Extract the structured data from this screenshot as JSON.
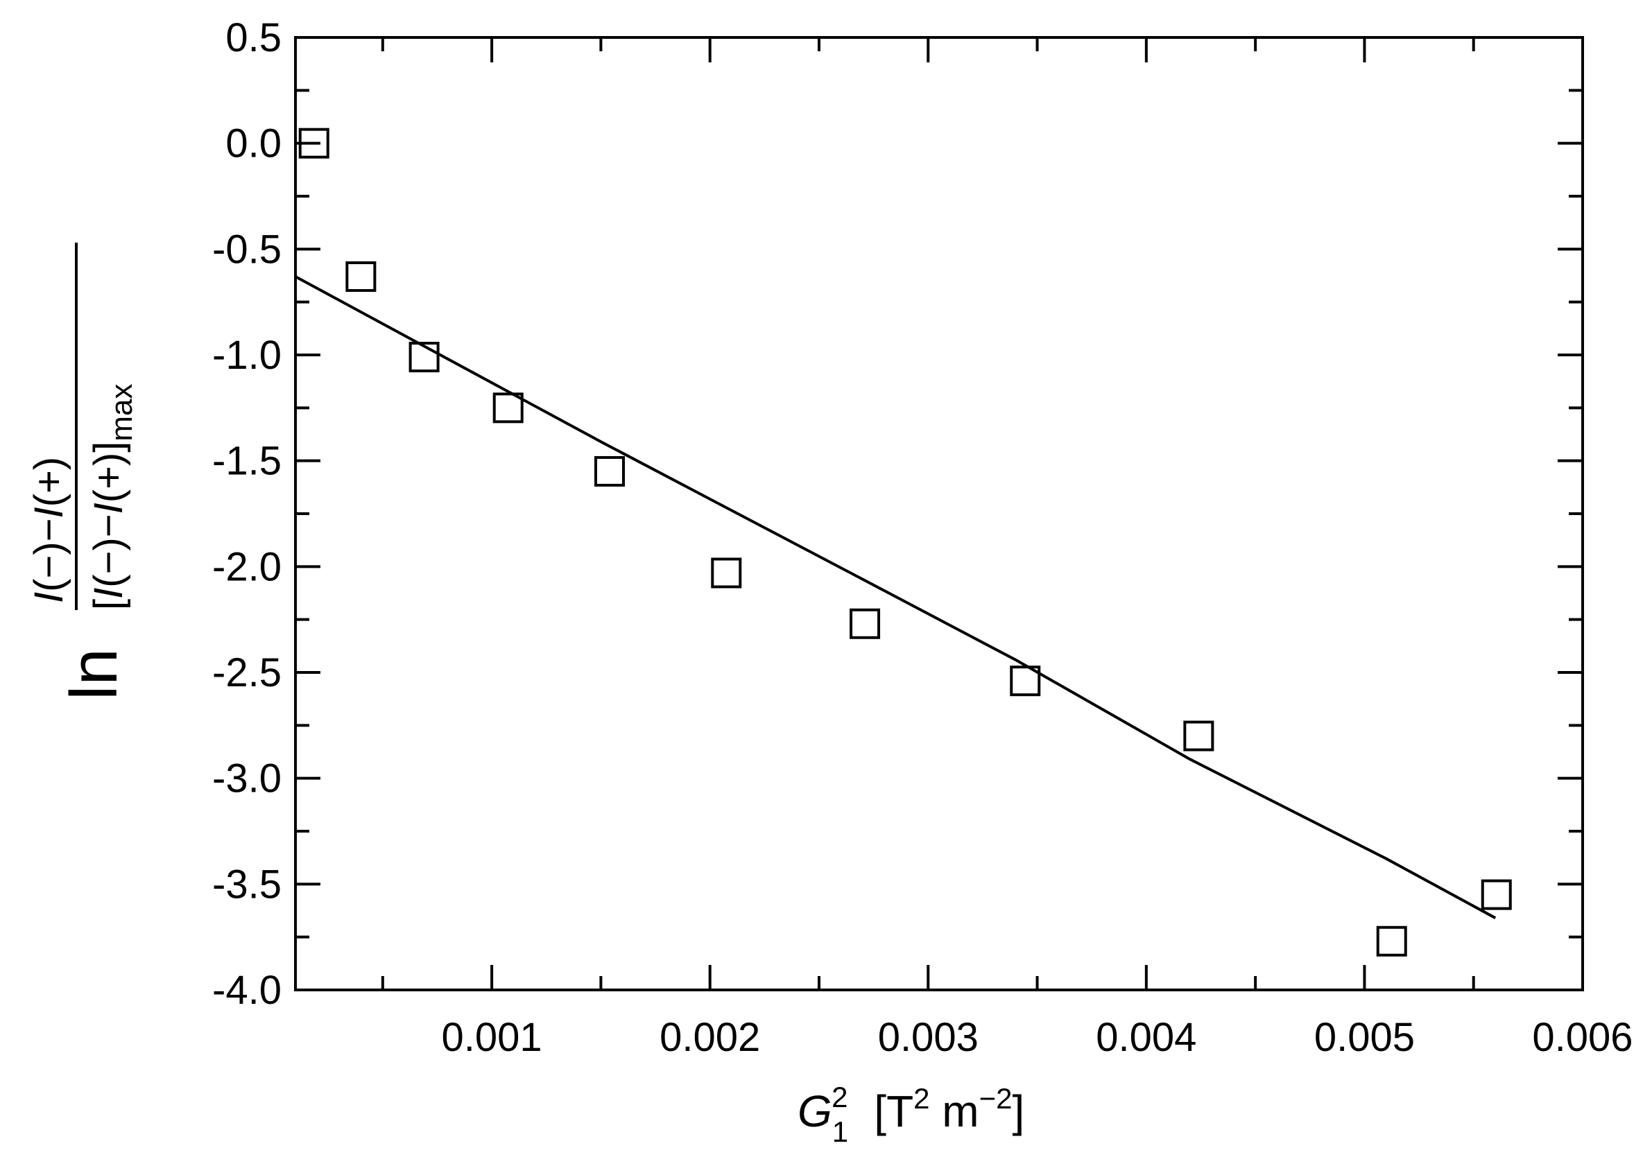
{
  "chart_data": {
    "type": "scatter",
    "xlabel": "G₁² [T² m⁻²]",
    "ylabel": "ln (I(−)−I(+)) / [I(−)−I(+)]max",
    "xlim": [
      0.0001,
      0.006
    ],
    "ylim": [
      -4.0,
      0.5
    ],
    "xticks": [
      "0.001",
      "0.002",
      "0.003",
      "0.004",
      "0.005",
      "0.006"
    ],
    "yticks": [
      "0.5",
      "0.0",
      "-0.5",
      "-1.0",
      "-1.5",
      "-2.0",
      "-2.5",
      "-3.0",
      "-3.5",
      "-4.0"
    ],
    "grid": false,
    "series": [
      {
        "kind": "markers",
        "marker": "open-square",
        "x": [
          0.000185,
          0.0004,
          0.00069,
          0.001075,
          0.00154,
          0.002075,
          0.00271,
          0.003445,
          0.00424,
          0.005125,
          0.005605
        ],
        "y": [
          0.0,
          -0.63,
          -1.01,
          -1.25,
          -1.55,
          -2.03,
          -2.27,
          -2.54,
          -2.8,
          -3.77,
          -3.55
        ]
      },
      {
        "kind": "line",
        "x": [
          0.0001,
          0.0015,
          0.0027,
          0.0034,
          0.0042,
          0.0051,
          0.0056
        ],
        "y": [
          -0.63,
          -1.41,
          -2.06,
          -2.44,
          -2.91,
          -3.38,
          -3.66
        ]
      }
    ]
  },
  "colors": {
    "ink": "#000000",
    "background": "#ffffff"
  }
}
